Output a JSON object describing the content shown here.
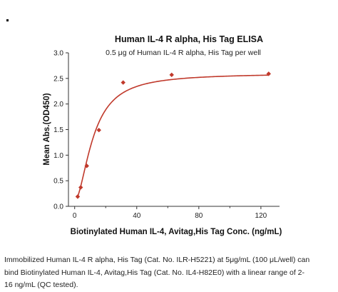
{
  "chart_data": {
    "type": "line",
    "title": "Human IL-4 R alpha, His Tag ELISA",
    "subtitle": "0.5 μg of Human IL-4 R alpha, His Tag per well",
    "xlabel": "Biotinylated Human IL-4, Avitag,His Tag Conc. (ng/mL)",
    "ylabel": "Mean Abs.(OD450)",
    "xlim": [
      -4,
      132
    ],
    "ylim": [
      0,
      3.0
    ],
    "xticks": [
      0,
      40,
      80,
      120
    ],
    "xtick_labels": [
      "0",
      "40",
      "80",
      "120"
    ],
    "yticks": [
      0.0,
      0.5,
      1.0,
      1.5,
      2.0,
      2.5,
      3.0
    ],
    "ytick_labels": [
      "0.0",
      "0.5",
      "1.0",
      "1.5",
      "2.0",
      "2.5",
      "3.0"
    ],
    "points": {
      "x": [
        1.95,
        3.91,
        7.81,
        15.63,
        31.25,
        62.5,
        125
      ],
      "y": [
        0.19,
        0.37,
        0.79,
        1.49,
        2.42,
        2.57,
        2.59
      ]
    },
    "fit_curve": {
      "model": "4PL",
      "bottom": 0.1,
      "top": 2.6,
      "ec50": 12.0,
      "hill": 1.8
    },
    "grid": false,
    "legend": "none",
    "colors": {
      "series": "#c0392b",
      "axis": "#333333",
      "text": "#111111"
    }
  },
  "caption": {
    "lines": [
      "Immobilized Human IL-4 R alpha, His Tag (Cat. No. ILR-H5221) at 5μg/mL (100 μL/well) can",
      "bind Biotinylated Human IL-4, Avitag,His Tag (Cat. No. IL4-H82E0) with a linear range of 2-",
      "16 ng/mL (QC tested)."
    ]
  }
}
